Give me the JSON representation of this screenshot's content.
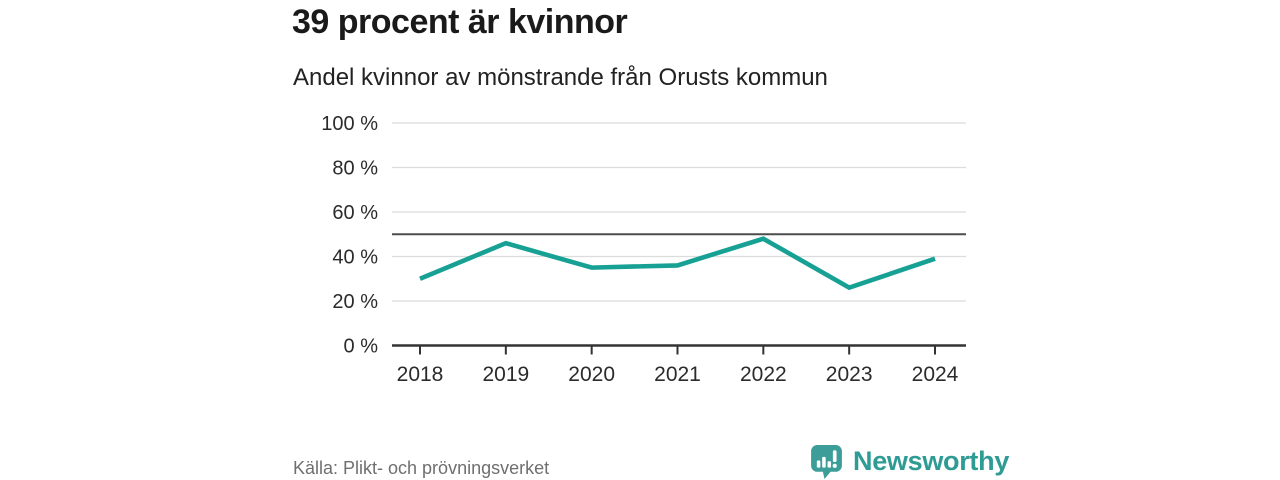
{
  "header": {
    "title": "39 procent är kvinnor",
    "subtitle": "Andel kvinnor av mönstrande från Orusts kommun"
  },
  "chart_data": {
    "type": "line",
    "title": "39 procent är kvinnor",
    "subtitle": "Andel kvinnor av mönstrande från Orusts kommun",
    "categories": [
      "2018",
      "2019",
      "2020",
      "2021",
      "2022",
      "2023",
      "2024"
    ],
    "series": [
      {
        "name": "Andel kvinnor",
        "values": [
          30,
          46,
          35,
          36,
          48,
          26,
          39
        ]
      }
    ],
    "unit": "%",
    "ylim": [
      0,
      100
    ],
    "yticks": [
      0,
      20,
      40,
      60,
      80,
      100
    ],
    "ytick_label_suffix": " %",
    "reference_line": 50,
    "grid": true,
    "legend_position": "none",
    "colors": {
      "line": "#17a094",
      "grid": "#dcdcdc",
      "axis": "#333333",
      "reference": "#4d4d4d",
      "tick_label": "#2b2b2b"
    }
  },
  "footer": {
    "source": "Källa: Plikt- och prövningsverket",
    "brand": "Newsworthy",
    "brand_color": "#2e9b94",
    "brand_icon": "bar-chart-speech-bubble-icon",
    "brand_icon_color": "#3d9e99"
  }
}
